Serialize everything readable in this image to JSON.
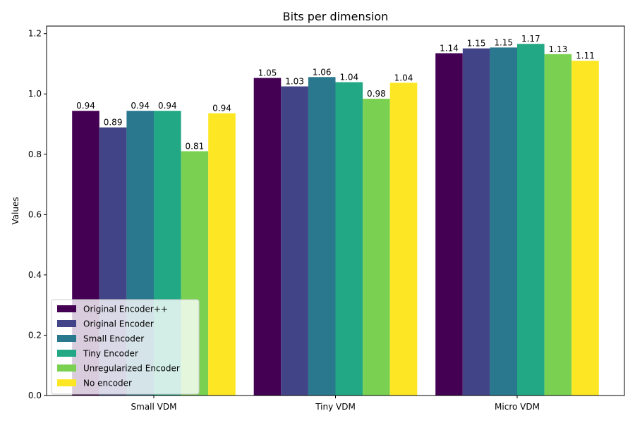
{
  "chart_data": {
    "type": "bar",
    "title": "Bits per dimension",
    "xlabel": "",
    "ylabel": "Values",
    "ylim": [
      0,
      1.225
    ],
    "yticks": [
      "0.0",
      "0.2",
      "0.4",
      "0.6",
      "0.8",
      "1.0",
      "1.2"
    ],
    "categories": [
      "Small VDM",
      "Tiny VDM",
      "Micro VDM"
    ],
    "series": [
      {
        "name": "Original Encoder++",
        "color": "#440154",
        "values": [
          0.944,
          1.053,
          1.135
        ],
        "labels": [
          "0.94",
          "1.05",
          "1.14"
        ]
      },
      {
        "name": "Original Encoder",
        "color": "#414487",
        "values": [
          0.889,
          1.025,
          1.151
        ],
        "labels": [
          "0.89",
          "1.03",
          "1.15"
        ]
      },
      {
        "name": "Small Encoder",
        "color": "#2a788e",
        "values": [
          0.944,
          1.056,
          1.154
        ],
        "labels": [
          "0.94",
          "1.06",
          "1.15"
        ]
      },
      {
        "name": "Tiny Encoder",
        "color": "#22a884",
        "values": [
          0.944,
          1.039,
          1.166
        ],
        "labels": [
          "0.94",
          "1.04",
          "1.17"
        ]
      },
      {
        "name": "Unregularized Encoder",
        "color": "#7ad151",
        "values": [
          0.81,
          0.984,
          1.132
        ],
        "labels": [
          "0.81",
          "0.98",
          "1.13"
        ]
      },
      {
        "name": "No encoder",
        "color": "#fde725",
        "values": [
          0.936,
          1.037,
          1.11
        ],
        "labels": [
          "0.94",
          "1.04",
          "1.11"
        ]
      }
    ],
    "grid": false,
    "legend_position": "lower-left"
  }
}
